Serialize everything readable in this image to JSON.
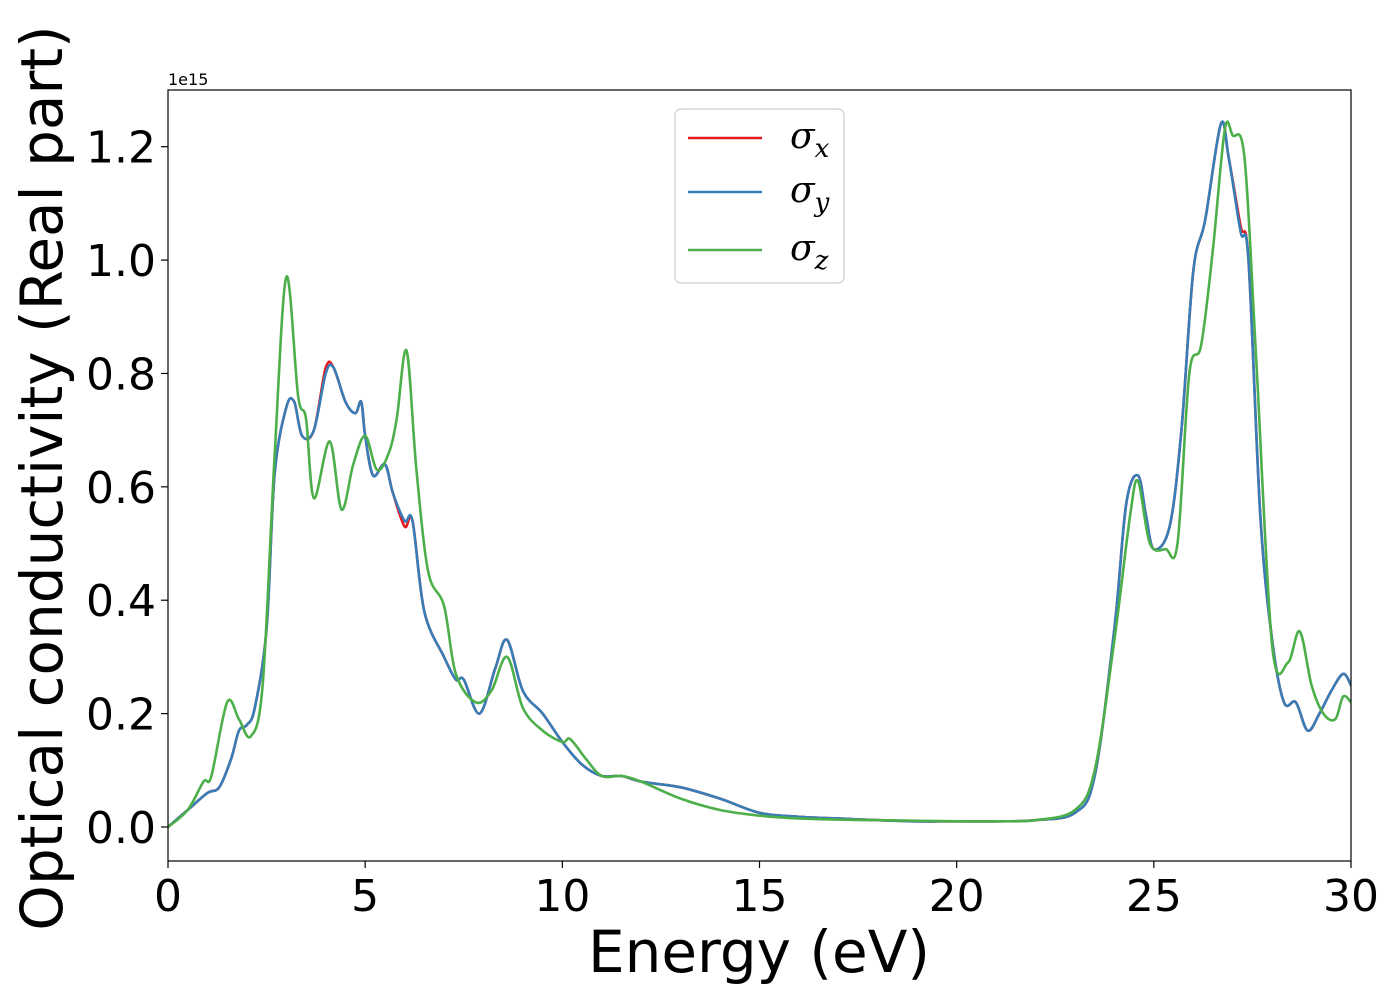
{
  "chart_data": {
    "type": "line",
    "xlabel": "Energy (eV)",
    "ylabel": "Optical conductivity (Real part)",
    "y_offset_text": "1e15",
    "xlim": [
      0,
      30
    ],
    "ylim": [
      -0.06,
      1.3
    ],
    "y_scale_factor": 1000000000000000.0,
    "x_ticks": [
      0,
      5,
      10,
      15,
      20,
      25,
      30
    ],
    "x_tick_labels": [
      "0",
      "5",
      "10",
      "15",
      "20",
      "25",
      "30"
    ],
    "y_ticks": [
      0.0,
      0.2,
      0.4,
      0.6,
      0.8,
      1.0,
      1.2
    ],
    "y_tick_labels": [
      "0.0",
      "0.2",
      "0.4",
      "0.6",
      "0.8",
      "1.0",
      "1.2"
    ],
    "grid": false,
    "legend_position": "upper-center",
    "series": [
      {
        "name": "σx",
        "legend_symbol": "σ",
        "legend_subscript": "x",
        "color": "#e41a1c",
        "x": [
          0,
          0.5,
          1.0,
          1.3,
          1.6,
          1.8,
          2.0,
          2.2,
          2.5,
          2.7,
          3.0,
          3.2,
          3.4,
          3.7,
          4.0,
          4.2,
          4.5,
          4.75,
          4.9,
          5.0,
          5.2,
          5.5,
          5.7,
          6.0,
          6.2,
          6.5,
          7.0,
          7.3,
          7.5,
          7.9,
          8.3,
          8.6,
          9.0,
          9.5,
          10.0,
          10.5,
          11.0,
          11.5,
          12.0,
          13.0,
          14.0,
          15.0,
          16.0,
          17.0,
          18.0,
          19.0,
          20.0,
          21.0,
          22.0,
          23.0,
          23.5,
          24.0,
          24.3,
          24.6,
          24.8,
          25.0,
          25.4,
          25.7,
          26.0,
          26.3,
          26.7,
          26.9,
          27.2,
          27.4,
          27.7,
          28.0,
          28.3,
          28.6,
          28.9,
          29.2,
          29.5,
          29.8,
          30.0
        ],
        "y": [
          0.0,
          0.03,
          0.06,
          0.07,
          0.12,
          0.17,
          0.18,
          0.21,
          0.35,
          0.62,
          0.74,
          0.75,
          0.69,
          0.7,
          0.81,
          0.81,
          0.75,
          0.73,
          0.75,
          0.69,
          0.62,
          0.64,
          0.59,
          0.53,
          0.54,
          0.38,
          0.3,
          0.26,
          0.26,
          0.2,
          0.28,
          0.33,
          0.24,
          0.2,
          0.15,
          0.11,
          0.09,
          0.09,
          0.08,
          0.07,
          0.05,
          0.025,
          0.018,
          0.015,
          0.012,
          0.01,
          0.01,
          0.01,
          0.012,
          0.025,
          0.09,
          0.35,
          0.57,
          0.62,
          0.55,
          0.49,
          0.53,
          0.7,
          0.98,
          1.07,
          1.24,
          1.18,
          1.06,
          1.0,
          0.55,
          0.33,
          0.22,
          0.22,
          0.17,
          0.2,
          0.24,
          0.27,
          0.25
        ]
      },
      {
        "name": "σy",
        "legend_symbol": "σ",
        "legend_subscript": "y",
        "color": "#377eb8",
        "x": [
          0,
          0.5,
          1.0,
          1.3,
          1.6,
          1.8,
          2.0,
          2.2,
          2.5,
          2.7,
          3.0,
          3.2,
          3.4,
          3.7,
          4.0,
          4.2,
          4.5,
          4.75,
          4.9,
          5.0,
          5.2,
          5.5,
          5.7,
          6.0,
          6.2,
          6.5,
          7.0,
          7.3,
          7.5,
          7.9,
          8.3,
          8.6,
          9.0,
          9.5,
          10.0,
          10.5,
          11.0,
          11.5,
          12.0,
          13.0,
          14.0,
          15.0,
          16.0,
          17.0,
          18.0,
          19.0,
          20.0,
          21.0,
          22.0,
          23.0,
          23.5,
          24.0,
          24.3,
          24.6,
          24.8,
          25.0,
          25.4,
          25.7,
          26.0,
          26.3,
          26.7,
          26.9,
          27.2,
          27.4,
          27.7,
          28.0,
          28.3,
          28.6,
          28.9,
          29.2,
          29.5,
          29.8,
          30.0
        ],
        "y": [
          0.0,
          0.03,
          0.06,
          0.07,
          0.12,
          0.17,
          0.18,
          0.21,
          0.35,
          0.62,
          0.74,
          0.75,
          0.69,
          0.7,
          0.8,
          0.81,
          0.75,
          0.73,
          0.75,
          0.69,
          0.62,
          0.64,
          0.59,
          0.54,
          0.54,
          0.38,
          0.3,
          0.26,
          0.26,
          0.2,
          0.28,
          0.33,
          0.24,
          0.2,
          0.15,
          0.11,
          0.09,
          0.09,
          0.08,
          0.07,
          0.05,
          0.025,
          0.018,
          0.015,
          0.012,
          0.01,
          0.01,
          0.01,
          0.012,
          0.025,
          0.09,
          0.35,
          0.57,
          0.62,
          0.55,
          0.49,
          0.53,
          0.7,
          0.98,
          1.07,
          1.24,
          1.18,
          1.05,
          1.0,
          0.55,
          0.33,
          0.22,
          0.22,
          0.17,
          0.2,
          0.24,
          0.27,
          0.25
        ]
      },
      {
        "name": "σz",
        "legend_symbol": "σ",
        "legend_subscript": "z",
        "color": "#4daf4a",
        "x": [
          0,
          0.5,
          0.9,
          1.1,
          1.5,
          1.8,
          2.1,
          2.4,
          2.7,
          3.0,
          3.3,
          3.5,
          3.7,
          4.1,
          4.4,
          4.7,
          5.0,
          5.3,
          5.6,
          5.8,
          6.05,
          6.3,
          6.6,
          7.0,
          7.3,
          7.8,
          8.2,
          8.6,
          9.0,
          9.5,
          10.0,
          10.2,
          10.6,
          11.0,
          11.5,
          12.0,
          13.0,
          14.0,
          15.0,
          16.0,
          17.0,
          18.0,
          19.0,
          20.0,
          21.0,
          22.0,
          23.0,
          23.5,
          24.0,
          24.4,
          24.6,
          24.9,
          25.3,
          25.6,
          25.9,
          26.2,
          26.5,
          26.8,
          27.0,
          27.3,
          27.6,
          28.0,
          28.4,
          28.7,
          29.0,
          29.3,
          29.6,
          29.8,
          30.0
        ],
        "y": [
          0.0,
          0.03,
          0.08,
          0.09,
          0.22,
          0.19,
          0.16,
          0.25,
          0.65,
          0.97,
          0.76,
          0.72,
          0.58,
          0.68,
          0.56,
          0.64,
          0.69,
          0.63,
          0.66,
          0.72,
          0.84,
          0.63,
          0.45,
          0.39,
          0.27,
          0.22,
          0.24,
          0.3,
          0.21,
          0.17,
          0.15,
          0.155,
          0.12,
          0.09,
          0.09,
          0.08,
          0.05,
          0.03,
          0.02,
          0.015,
          0.013,
          0.012,
          0.011,
          0.01,
          0.01,
          0.012,
          0.03,
          0.1,
          0.33,
          0.55,
          0.61,
          0.5,
          0.49,
          0.5,
          0.8,
          0.85,
          1.02,
          1.23,
          1.22,
          1.18,
          0.82,
          0.32,
          0.29,
          0.345,
          0.25,
          0.2,
          0.19,
          0.23,
          0.22
        ]
      }
    ]
  }
}
